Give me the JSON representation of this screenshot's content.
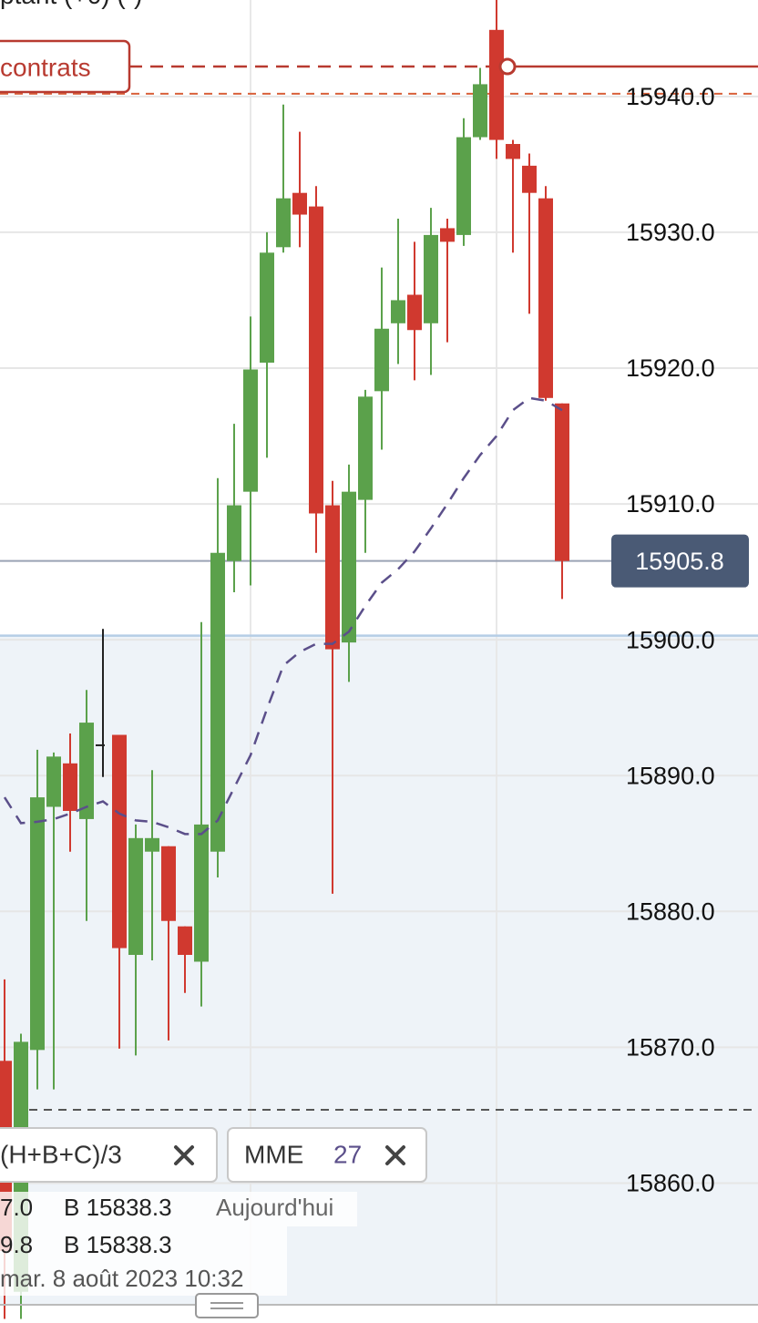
{
  "chart_data": {
    "type": "candlestick",
    "title": "ptant (+0) (-)",
    "ylim": [
      15849.7,
      15947.1
    ],
    "yticks": [
      {
        "value": 15860,
        "label": "15860.0"
      },
      {
        "value": 15870,
        "label": "15870.0"
      },
      {
        "value": 15880,
        "label": "15880.0"
      },
      {
        "value": 15890,
        "label": "15890.0"
      },
      {
        "value": 15900,
        "label": "15900.0"
      },
      {
        "value": 15910,
        "label": "15910.0"
      },
      {
        "value": 15920,
        "label": "15920.0"
      },
      {
        "value": 15930,
        "label": "15930.0"
      },
      {
        "value": 15940,
        "label": "15940.0"
      }
    ],
    "grid": true,
    "colors": {
      "up": "#5ba14b",
      "down": "#d0392f",
      "flat": "#222222"
    },
    "candles": {
      "open": [
        15869,
        15852,
        15869.8,
        15887.7,
        15890.9,
        15886.8,
        15892.3,
        15893.0,
        15876.8,
        15884.4,
        15884.8,
        15878.9,
        15876.3,
        15884.4,
        15905.8,
        15910.9,
        15920.4,
        15928.9,
        15932.9,
        15931.9,
        15909.9,
        15899.8,
        15910.3,
        15918.3,
        15923.3,
        15925.4,
        15923.3,
        15930.3,
        15929.8,
        15937.0,
        15944.9,
        15936.5,
        15934.9,
        15932.5,
        15917.4
      ],
      "high": [
        15875,
        15871,
        15891.9,
        15891.7,
        15893.1,
        15896.3,
        15900.8,
        15893.0,
        15886.4,
        15890.4,
        15884.8,
        15878.9,
        15901.3,
        15911.9,
        15915.9,
        15923.8,
        15930.0,
        15939.4,
        15937.4,
        15933.4,
        15911.7,
        15912.9,
        15918.4,
        15927.4,
        15931.0,
        15929.3,
        15931.8,
        15931.0,
        15938.4,
        15942.1,
        15947.1,
        15936.8,
        15935.8,
        15933.4,
        15917.4
      ],
      "low": [
        15850,
        15850,
        15866.9,
        15866.9,
        15884.4,
        15879.3,
        15889.9,
        15869.9,
        15869.4,
        15876.4,
        15870.5,
        15874.0,
        15873.0,
        15882.5,
        15903.5,
        15904.0,
        15913.4,
        15928.5,
        15928.9,
        15906.4,
        15881.3,
        15896.9,
        15906.4,
        15914.0,
        15920.3,
        15919.1,
        15919.5,
        15921.9,
        15929.0,
        15936.8,
        15935.4,
        15928.5,
        15924.0,
        15917.6,
        15903.0
      ],
      "close": [
        15855,
        15870.4,
        15888.4,
        15891.4,
        15887.4,
        15893.9,
        15892.3,
        15877.3,
        15885.4,
        15885.4,
        15879.3,
        15876.8,
        15886.4,
        15906.4,
        15909.9,
        15919.9,
        15928.5,
        15932.5,
        15931.3,
        15909.3,
        15899.3,
        15910.9,
        15917.9,
        15922.9,
        15925.0,
        15922.8,
        15929.8,
        15929.3,
        15937.0,
        15940.9,
        15936.8,
        15935.4,
        15932.9,
        15917.8,
        15905.8
      ]
    },
    "indicators": [
      {
        "name": "(H+B+C)/3"
      },
      {
        "name": "MME",
        "period": 27,
        "color": "#5b4f8a",
        "values": [
          15888.4,
          15886.5,
          15886.6,
          15886.8,
          15887.2,
          15887.7,
          15888.1,
          15887.2,
          15886.7,
          15886.6,
          15886.2,
          15885.7,
          15885.7,
          15886.7,
          15889.1,
          15891.5,
          15894.9,
          15898.1,
          15899.1,
          15899.7,
          15899.7,
          15900.6,
          15902.5,
          15904.2,
          15905.2,
          15906.5,
          15908.2,
          15910.0,
          15911.9,
          15913.6,
          15915.0,
          15916.9,
          15917.8,
          15917.6,
          15916.9
        ]
      }
    ],
    "last_price": 15905.8,
    "orders": [
      {
        "label": "contrats",
        "value": 15942.2,
        "color": "#b83a30"
      }
    ],
    "levels": [
      {
        "value": 15940.2,
        "color": "#d9613a",
        "style": "dashed"
      },
      {
        "value": 15900.3,
        "color": "#b5cde6",
        "style": "solid",
        "shade_below": true
      },
      {
        "value": 15865.4,
        "color": "#555555",
        "style": "dashed"
      }
    ],
    "info": {
      "rows": [
        [
          "7.0",
          "B 15838.3",
          "Aujourd'hui"
        ],
        [
          "9.8",
          "B 15838.3"
        ]
      ],
      "date": "mar. 8 août 2023 10:32"
    }
  }
}
